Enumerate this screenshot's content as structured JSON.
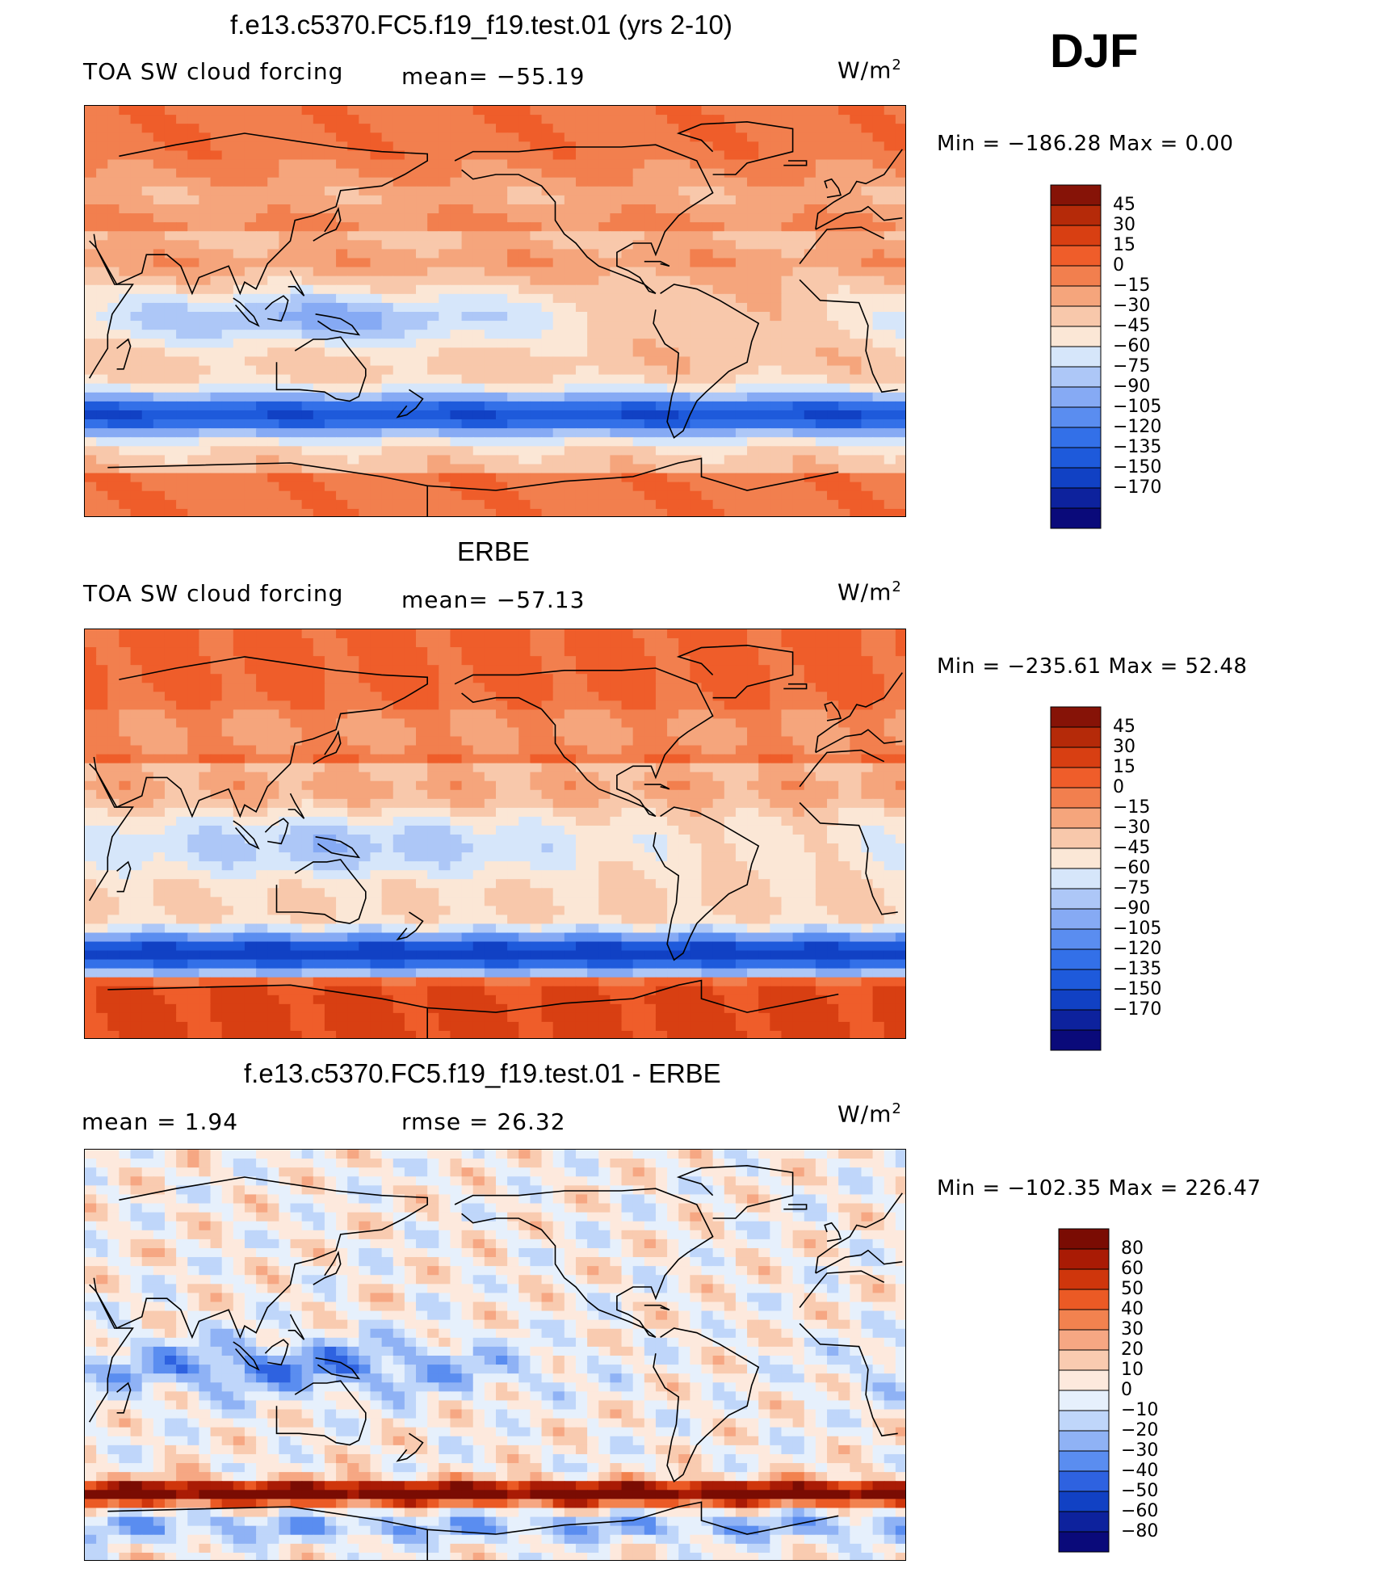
{
  "season": "DJF",
  "colors": {
    "levels14": [
      "#0a0a7a",
      "#0d229d",
      "#1141c4",
      "#1e5adb",
      "#3370e8",
      "#5a8df0",
      "#86aaf4",
      "#adc7f7",
      "#d6e6fa",
      "#fbe7d6",
      "#f8c8ab",
      "#f5a57c",
      "#f27f4e",
      "#ef5d2a",
      "#d83f12",
      "#b52a09",
      "#861307"
    ],
    "diff": [
      "#0a0a7a",
      "#0d229d",
      "#1141c4",
      "#2e62e0",
      "#5a8df0",
      "#8fb2f5",
      "#bfd6fa",
      "#e6f0fc",
      "#fde9dd",
      "#f9cbb0",
      "#f6a783",
      "#f2824f",
      "#eb5a25",
      "#cf360c",
      "#a91b05",
      "#7a0c03"
    ]
  },
  "chart_data": [
    {
      "type": "heatmap",
      "title": "f.e13.c5370.FC5.f19_f19.test.01 (yrs 2-10)",
      "variable": "TOA SW cloud forcing",
      "mean_label": "mean= −55.19",
      "units": "W/m",
      "units_sup": "2",
      "min_label": "Min  =  −186.28  Max  =      0.00",
      "colorbar_levels": [
        "45",
        "30",
        "15",
        "0",
        "−15",
        "−30",
        "−45",
        "−60",
        "−75",
        "−90",
        "−105",
        "−120",
        "−135",
        "−150",
        "−170"
      ]
    },
    {
      "type": "heatmap",
      "title": "ERBE",
      "variable": "TOA SW cloud forcing",
      "mean_label": "mean= −57.13",
      "units": "W/m",
      "units_sup": "2",
      "min_label": "Min  =  −235.61  Max  =    52.48",
      "colorbar_levels": [
        "45",
        "30",
        "15",
        "0",
        "−15",
        "−30",
        "−45",
        "−60",
        "−75",
        "−90",
        "−105",
        "−120",
        "−135",
        "−150",
        "−170"
      ]
    },
    {
      "type": "heatmap",
      "title": "f.e13.c5370.FC5.f19_f19.test.01 - ERBE",
      "mean_label": "mean  =     1.94",
      "rmse_label": "rmse  =    26.32",
      "units": "W/m",
      "units_sup": "2",
      "min_label": "Min  =  −102.35  Max  =  226.47",
      "colorbar_levels": [
        "80",
        "60",
        "50",
        "40",
        "30",
        "20",
        "10",
        "0",
        "−10",
        "−20",
        "−30",
        "−40",
        "−50",
        "−60",
        "−80"
      ]
    }
  ]
}
